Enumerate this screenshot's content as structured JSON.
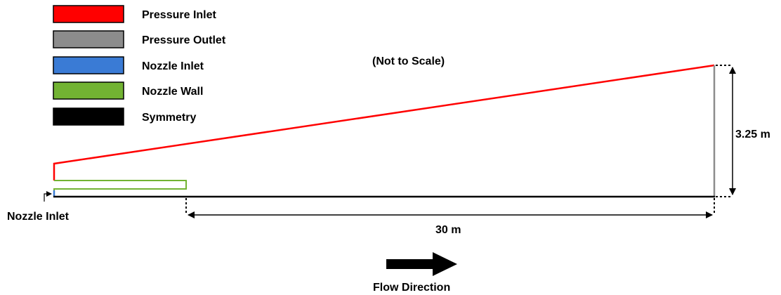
{
  "legend": {
    "items": [
      {
        "label": "Pressure Inlet",
        "color": "#ff0000"
      },
      {
        "label": "Pressure Outlet",
        "color": "#8c8c8c"
      },
      {
        "label": "Nozzle Inlet",
        "color": "#3a7bd5"
      },
      {
        "label": "Nozzle Wall",
        "color": "#72b332"
      },
      {
        "label": "Symmetry",
        "color": "#000000"
      }
    ]
  },
  "note": "(Not to Scale)",
  "annotations": {
    "nozzle_inlet": "Nozzle Inlet",
    "height": "3.25 m",
    "length": "30 m",
    "flow_direction": "Flow Direction"
  }
}
